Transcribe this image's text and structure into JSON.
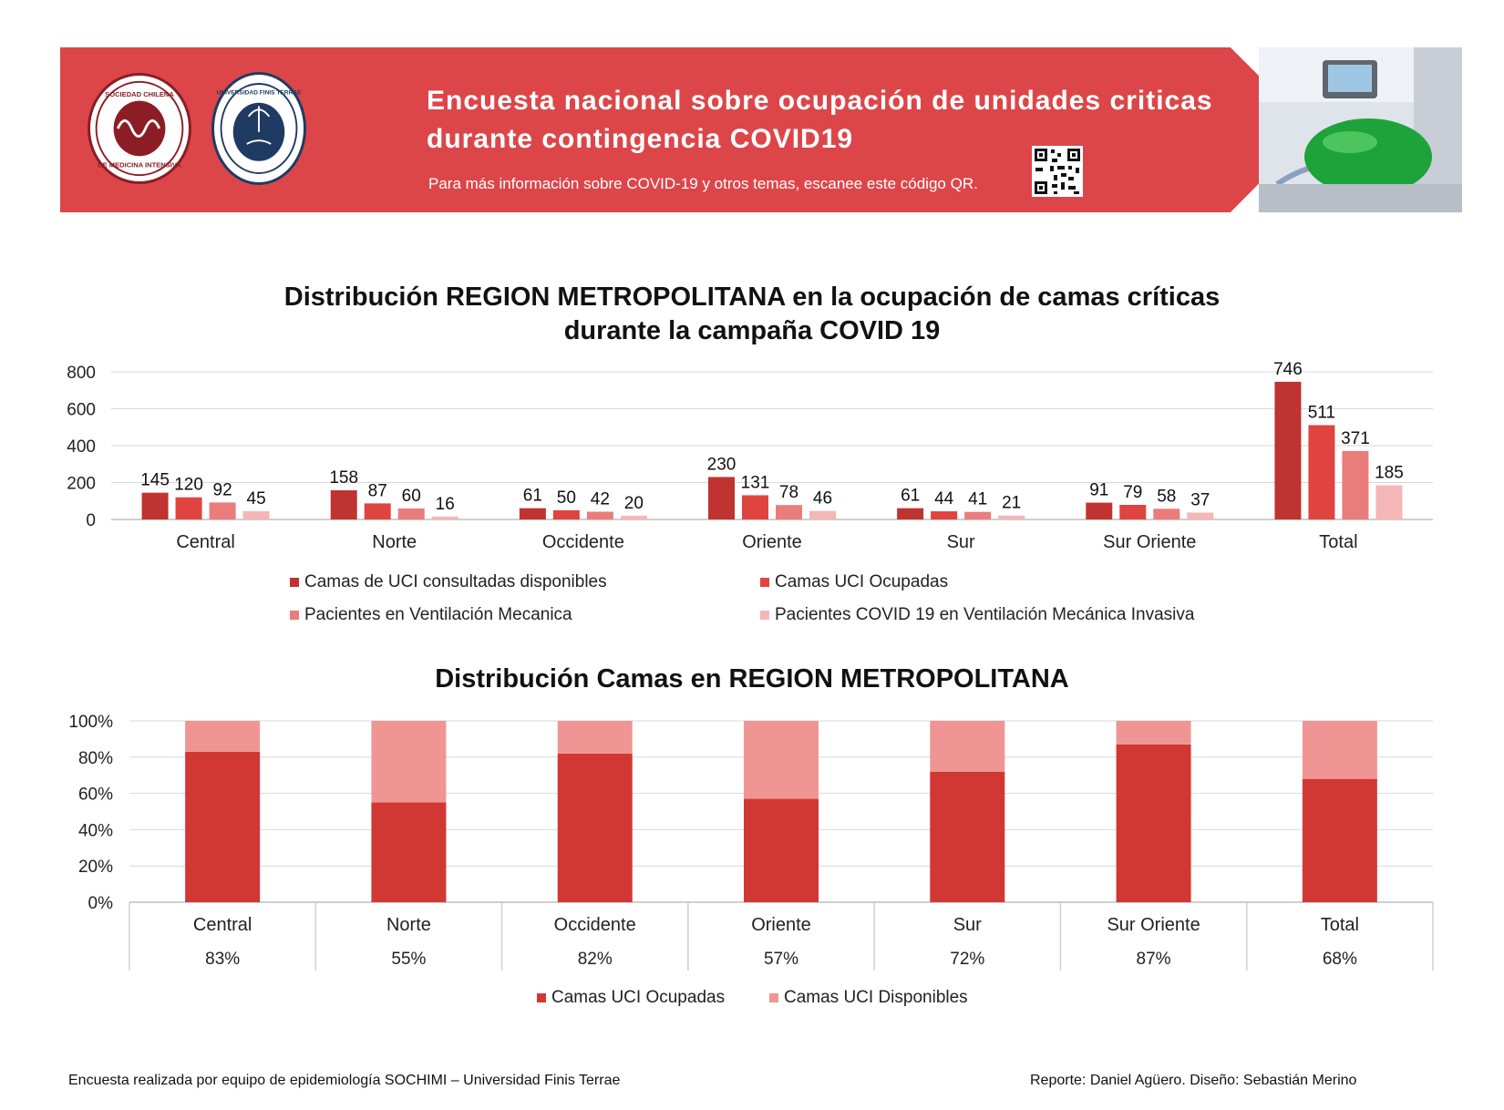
{
  "banner": {
    "title_line1": "Encuesta nacional sobre ocupación de unidades criticas",
    "title_line2": "durante contingencia COVID19",
    "subtitle": "Para más información sobre COVID-19 y otros temas, escanee este código QR.",
    "logo1_text": "SOCIEDAD CHILENA DE MEDICINA INTENSIVA",
    "logo2_text": "UNIVERSIDAD FINIS TERRAE",
    "colors": {
      "bg": "#dc4649",
      "logo_red": "#8c1d24",
      "logo_blue": "#1f3b63"
    }
  },
  "chart1": {
    "title_line1": "Distribución REGION METROPOLITANA en la ocupación de camas críticas",
    "title_line2": "durante la campaña COVID 19",
    "legend": [
      "Camas de UCI consultadas disponibles",
      "Camas UCI Ocupadas",
      "Pacientes en Ventilación Mecanica",
      "Pacientes COVID 19 en Ventilación Mecánica Invasiva"
    ]
  },
  "chart2": {
    "title": "Distribución Camas en REGION METROPOLITANA",
    "legend": [
      "Camas UCI Ocupadas",
      "Camas UCI Disponibles"
    ]
  },
  "chart_data": [
    {
      "type": "bar",
      "categories": [
        "Central",
        "Norte",
        "Occidente",
        "Oriente",
        "Sur",
        "Sur Oriente",
        "Total"
      ],
      "series": [
        {
          "name": "Camas de UCI consultadas disponibles",
          "values": [
            145,
            158,
            61,
            230,
            61,
            91,
            746
          ],
          "color": "#bf3331"
        },
        {
          "name": "Camas UCI Ocupadas",
          "values": [
            120,
            87,
            50,
            131,
            44,
            79,
            511
          ],
          "color": "#e04440"
        },
        {
          "name": "Pacientes en Ventilación Mecanica",
          "values": [
            92,
            60,
            42,
            78,
            41,
            58,
            371
          ],
          "color": "#ea7c7b"
        },
        {
          "name": "Pacientes COVID 19 en Ventilación Mecánica Invasiva",
          "values": [
            45,
            16,
            20,
            46,
            21,
            37,
            185
          ],
          "color": "#f4b6b6"
        }
      ],
      "ylim": [
        0,
        800
      ],
      "yticks": [
        "0",
        "200",
        "400",
        "600",
        "800"
      ],
      "grid": true,
      "legend_position": "bottom"
    },
    {
      "type": "bar",
      "stacked": true,
      "percent": true,
      "categories": [
        "Central",
        "Norte",
        "Occidente",
        "Oriente",
        "Sur",
        "Sur Oriente",
        "Total"
      ],
      "series": [
        {
          "name": "Camas UCI Ocupadas",
          "values": [
            83,
            55,
            82,
            57,
            72,
            87,
            68
          ],
          "color": "#d13833"
        },
        {
          "name": "Camas UCI Disponibles",
          "values": [
            17,
            45,
            18,
            43,
            28,
            13,
            32
          ],
          "color": "#ef9694"
        }
      ],
      "table_values": [
        "83%",
        "55%",
        "82%",
        "57%",
        "72%",
        "87%",
        "68%"
      ],
      "ylim": [
        0,
        100
      ],
      "yticks": [
        "0%",
        "20%",
        "40%",
        "60%",
        "80%",
        "100%"
      ],
      "grid": true,
      "legend_position": "bottom"
    }
  ],
  "footer": {
    "left": "Encuesta realizada por equipo de epidemiología SOCHIMI – Universidad Finis Terrae",
    "right": "Reporte: Daniel Agüero. Diseño: Sebastián Merino"
  }
}
